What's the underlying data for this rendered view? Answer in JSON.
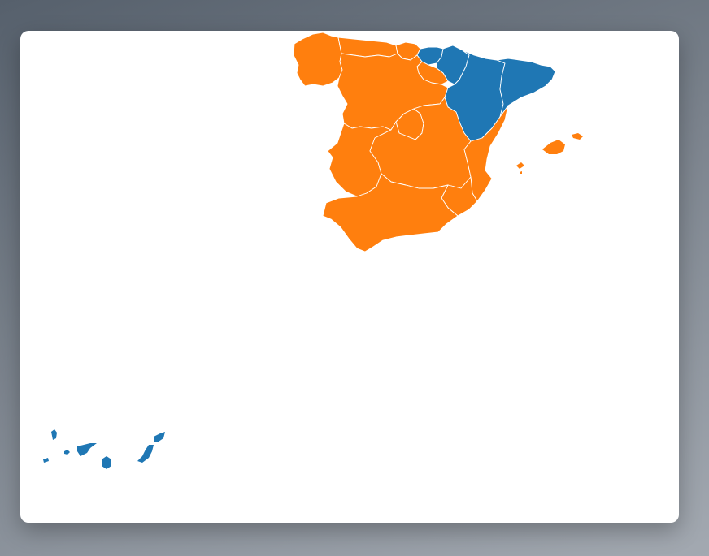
{
  "map": {
    "colors": {
      "group_a": "#ff7f0e",
      "group_b": "#1f77b4"
    },
    "regions": [
      {
        "id": "galicia",
        "group": "group_a"
      },
      {
        "id": "asturias",
        "group": "group_a"
      },
      {
        "id": "cantabria",
        "group": "group_a"
      },
      {
        "id": "pais-vasco",
        "group": "group_b"
      },
      {
        "id": "navarra",
        "group": "group_b"
      },
      {
        "id": "la-rioja",
        "group": "group_a"
      },
      {
        "id": "castilla-y-leon",
        "group": "group_a"
      },
      {
        "id": "aragon",
        "group": "group_b"
      },
      {
        "id": "cataluna",
        "group": "group_b"
      },
      {
        "id": "madrid",
        "group": "group_a"
      },
      {
        "id": "extremadura",
        "group": "group_a"
      },
      {
        "id": "castilla-la-mancha",
        "group": "group_a"
      },
      {
        "id": "comunidad-valenciana",
        "group": "group_a"
      },
      {
        "id": "murcia",
        "group": "group_a"
      },
      {
        "id": "andalucia",
        "group": "group_a"
      },
      {
        "id": "islas-baleares",
        "group": "group_a"
      },
      {
        "id": "canarias",
        "group": "group_b"
      }
    ]
  }
}
